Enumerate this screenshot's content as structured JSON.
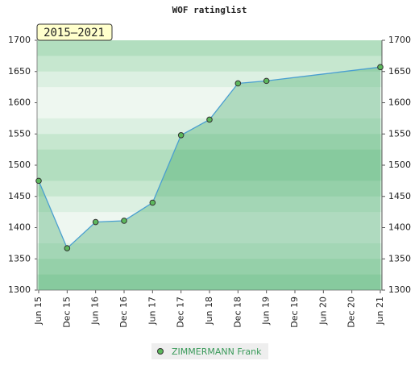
{
  "chart_data": {
    "type": "area",
    "title": "WOF ratinglist",
    "badge": "2015–2021",
    "xticks": [
      "Jun 15",
      "Dec 15",
      "Jun 16",
      "Dec 16",
      "Jun 17",
      "Dec 17",
      "Jun 18",
      "Dec 18",
      "Jun 19",
      "Dec 19",
      "Jun 20",
      "Dec 20",
      "Jun 21"
    ],
    "series": [
      {
        "name": "ZIMMERMANN Frank",
        "color": "#4a9fd0",
        "x": [
          "Jun 15",
          "Dec 15",
          "Jun 16",
          "Dec 16",
          "Jun 17",
          "Dec 17",
          "Jun 18",
          "Dec 18",
          "Jun 19",
          "Jun 21"
        ],
        "values": [
          1475,
          1367,
          1409,
          1411,
          1440,
          1548,
          1573,
          1631,
          1635,
          1657
        ]
      }
    ],
    "ylim": [
      1300,
      1700
    ],
    "yticks": [
      1300,
      1350,
      1400,
      1450,
      1500,
      1550,
      1600,
      1650,
      1700
    ],
    "y2lim": [
      1300,
      1700
    ],
    "y2ticks": [
      1300,
      1350,
      1400,
      1450,
      1500,
      1550,
      1600,
      1650,
      1700
    ]
  }
}
